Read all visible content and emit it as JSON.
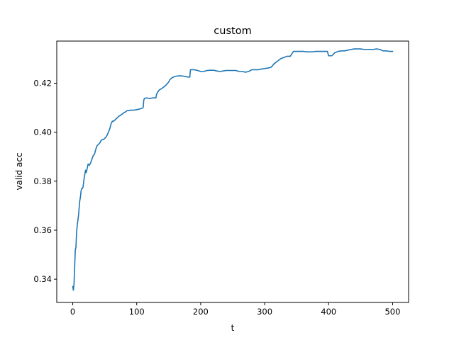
{
  "chart_data": {
    "type": "line",
    "title": "custom",
    "xlabel": "t",
    "ylabel": "valid acc",
    "xlim": [
      -25,
      525
    ],
    "ylim": [
      0.3305,
      0.4372
    ],
    "xticks": [
      0,
      100,
      200,
      300,
      400,
      500
    ],
    "yticks": [
      0.34,
      0.36,
      0.38,
      0.4,
      0.42
    ],
    "grid": false,
    "series": [
      {
        "color": "#1f77b4",
        "x": [
          0,
          1,
          2,
          3,
          4,
          5,
          6,
          7,
          8,
          9,
          10,
          11,
          12,
          13,
          14,
          15,
          16,
          18,
          20,
          21,
          22,
          24,
          26,
          28,
          30,
          32,
          34,
          36,
          38,
          40,
          42,
          44,
          46,
          48,
          50,
          52,
          55,
          58,
          60,
          62,
          64,
          66,
          68,
          70,
          72,
          75,
          78,
          80,
          82,
          85,
          88,
          90,
          95,
          100,
          105,
          110,
          111,
          112,
          115,
          120,
          125,
          130,
          131,
          132,
          135,
          140,
          145,
          150,
          152,
          155,
          160,
          165,
          170,
          175,
          180,
          183,
          184,
          190,
          195,
          200,
          205,
          210,
          215,
          220,
          225,
          230,
          235,
          240,
          245,
          250,
          255,
          260,
          265,
          270,
          275,
          280,
          285,
          290,
          295,
          300,
          305,
          310,
          315,
          320,
          325,
          330,
          335,
          340,
          345,
          350,
          355,
          360,
          365,
          370,
          375,
          380,
          385,
          390,
          395,
          398,
          400,
          405,
          408,
          410,
          415,
          420,
          425,
          430,
          435,
          440,
          445,
          450,
          455,
          460,
          465,
          470,
          475,
          480,
          485,
          490,
          495,
          500
        ],
        "y": [
          0.337,
          0.3355,
          0.338,
          0.345,
          0.352,
          0.353,
          0.359,
          0.362,
          0.364,
          0.366,
          0.369,
          0.372,
          0.3735,
          0.376,
          0.377,
          0.377,
          0.3775,
          0.3815,
          0.3845,
          0.3835,
          0.3845,
          0.387,
          0.3865,
          0.3875,
          0.389,
          0.3905,
          0.391,
          0.393,
          0.3945,
          0.395,
          0.3955,
          0.3965,
          0.397,
          0.397,
          0.3975,
          0.398,
          0.3995,
          0.4015,
          0.4035,
          0.4045,
          0.4045,
          0.405,
          0.4055,
          0.406,
          0.4065,
          0.407,
          0.4075,
          0.408,
          0.4082,
          0.4088,
          0.4088,
          0.409,
          0.409,
          0.4092,
          0.4095,
          0.41,
          0.413,
          0.4138,
          0.414,
          0.4138,
          0.414,
          0.414,
          0.4155,
          0.416,
          0.4172,
          0.418,
          0.419,
          0.4205,
          0.4215,
          0.4222,
          0.4228,
          0.423,
          0.423,
          0.4228,
          0.4225,
          0.4225,
          0.4255,
          0.4255,
          0.4252,
          0.4248,
          0.4248,
          0.4252,
          0.4253,
          0.4253,
          0.425,
          0.4248,
          0.425,
          0.4252,
          0.4252,
          0.4252,
          0.4252,
          0.4248,
          0.4248,
          0.4245,
          0.4248,
          0.4255,
          0.4255,
          0.4255,
          0.4258,
          0.426,
          0.4262,
          0.4265,
          0.428,
          0.429,
          0.43,
          0.4305,
          0.431,
          0.431,
          0.433,
          0.433,
          0.433,
          0.433,
          0.4328,
          0.4328,
          0.4328,
          0.433,
          0.433,
          0.433,
          0.433,
          0.433,
          0.4312,
          0.4312,
          0.432,
          0.4325,
          0.433,
          0.4332,
          0.4332,
          0.4335,
          0.4338,
          0.434,
          0.434,
          0.434,
          0.4338,
          0.4338,
          0.4338,
          0.4338,
          0.434,
          0.4338,
          0.4332,
          0.4332,
          0.433,
          0.433
        ]
      }
    ]
  }
}
